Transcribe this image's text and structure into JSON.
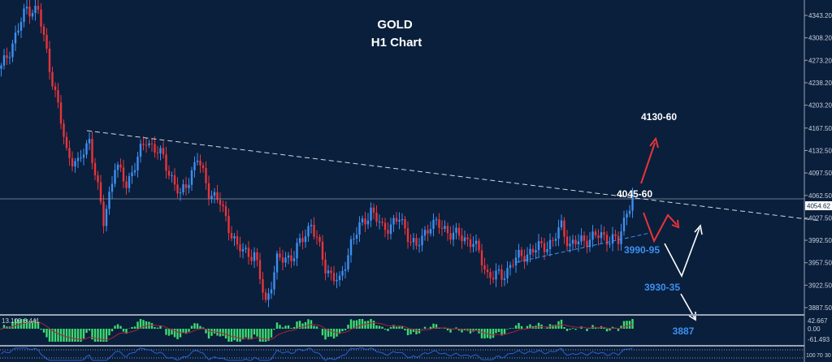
{
  "chart_data": {
    "type": "candlestick",
    "title": "GOLD",
    "subtitle": "H1 Chart",
    "ylim": [
      3870,
      4365
    ],
    "y_ticks": [
      "4343.20",
      "4308.20",
      "4273.20",
      "4238.20",
      "4203.20",
      "4167.50",
      "4132.50",
      "4097.50",
      "4062.50",
      "4027.50",
      "3992.50",
      "3957.50",
      "3922.50",
      "3887.50"
    ],
    "y_tick_values": [
      4343.2,
      4308.2,
      4273.2,
      4238.2,
      4203.2,
      4167.5,
      4132.5,
      4097.5,
      4062.5,
      4027.5,
      3992.5,
      3957.5,
      3922.5,
      3887.5
    ],
    "current_price": "4054.62",
    "current_price_value": 4054.62,
    "price_path": [
      [
        0,
        4260
      ],
      [
        4,
        4300
      ],
      [
        9,
        4355
      ],
      [
        13,
        4350
      ],
      [
        20,
        4200
      ],
      [
        23,
        4130
      ],
      [
        27,
        4110
      ],
      [
        31,
        4150
      ],
      [
        36,
        4020
      ],
      [
        40,
        4110
      ],
      [
        44,
        4080
      ],
      [
        51,
        4150
      ],
      [
        57,
        4120
      ],
      [
        63,
        4060
      ],
      [
        69,
        4120
      ],
      [
        73,
        4070
      ],
      [
        77,
        4050
      ],
      [
        83,
        3980
      ],
      [
        89,
        3970
      ],
      [
        93,
        3895
      ],
      [
        97,
        3960
      ],
      [
        103,
        3970
      ],
      [
        109,
        4020
      ],
      [
        114,
        3950
      ],
      [
        119,
        3925
      ],
      [
        123,
        3990
      ],
      [
        130,
        4040
      ],
      [
        134,
        4010
      ],
      [
        140,
        4025
      ],
      [
        146,
        3980
      ],
      [
        151,
        4020
      ],
      [
        156,
        4010
      ],
      [
        160,
        4000
      ],
      [
        166,
        3990
      ],
      [
        171,
        3940
      ],
      [
        176,
        3935
      ],
      [
        180,
        3960
      ],
      [
        186,
        3975
      ],
      [
        194,
        3990
      ],
      [
        197,
        4015
      ],
      [
        200,
        3985
      ],
      [
        206,
        3995
      ],
      [
        211,
        4000
      ],
      [
        217,
        3990
      ],
      [
        220,
        4040
      ],
      [
        222,
        4058
      ]
    ],
    "annotations": [
      {
        "text": "4130-60",
        "color": "#ffffff"
      },
      {
        "text": "4045-60",
        "color": "#ffffff"
      },
      {
        "text": "3990-95",
        "color": "#3d8ff0"
      },
      {
        "text": "3930-35",
        "color": "#3d8ff0"
      },
      {
        "text": "3887",
        "color": "#3d8ff0"
      }
    ],
    "macd": {
      "values_label": "13.109 6.441",
      "ticks": [
        "42.667",
        "0.00",
        "-61.493"
      ]
    },
    "rsi": {
      "ticks": [
        "100",
        "70",
        "30"
      ]
    },
    "colors": {
      "up": "#3d8ff0",
      "down": "#e8343a",
      "background": "#0a1f3c",
      "macd_hist": "#3ddc6e",
      "macd_signal": "#b02040",
      "rsi_line": "#2f5fd0",
      "trendline": "#d0d8e4"
    }
  }
}
